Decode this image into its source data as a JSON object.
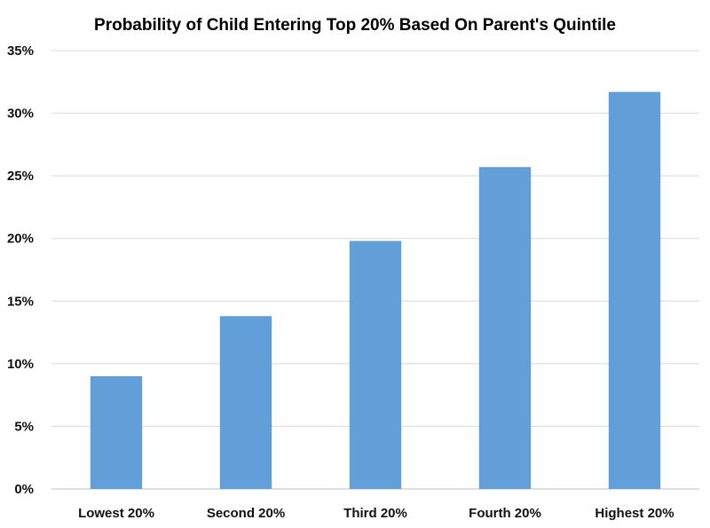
{
  "chart_data": {
    "type": "bar",
    "title": "Probability of Child Entering Top 20% Based On Parent's Quintile",
    "xlabel": "",
    "ylabel": "",
    "categories": [
      "Lowest 20%",
      "Second 20%",
      "Third 20%",
      "Fourth 20%",
      "Highest 20%"
    ],
    "values": [
      9.0,
      13.8,
      19.8,
      25.7,
      31.7
    ],
    "ylim": [
      0,
      35
    ],
    "yticks": [
      0,
      5,
      10,
      15,
      20,
      25,
      30,
      35
    ],
    "ytick_labels": [
      "0%",
      "5%",
      "10%",
      "15%",
      "20%",
      "25%",
      "30%",
      "35%"
    ],
    "grid": true,
    "legend": "none",
    "colors": {
      "bar": "#629fd9",
      "grid": "#d9d9d9",
      "axis": "#bfbfbf"
    }
  }
}
